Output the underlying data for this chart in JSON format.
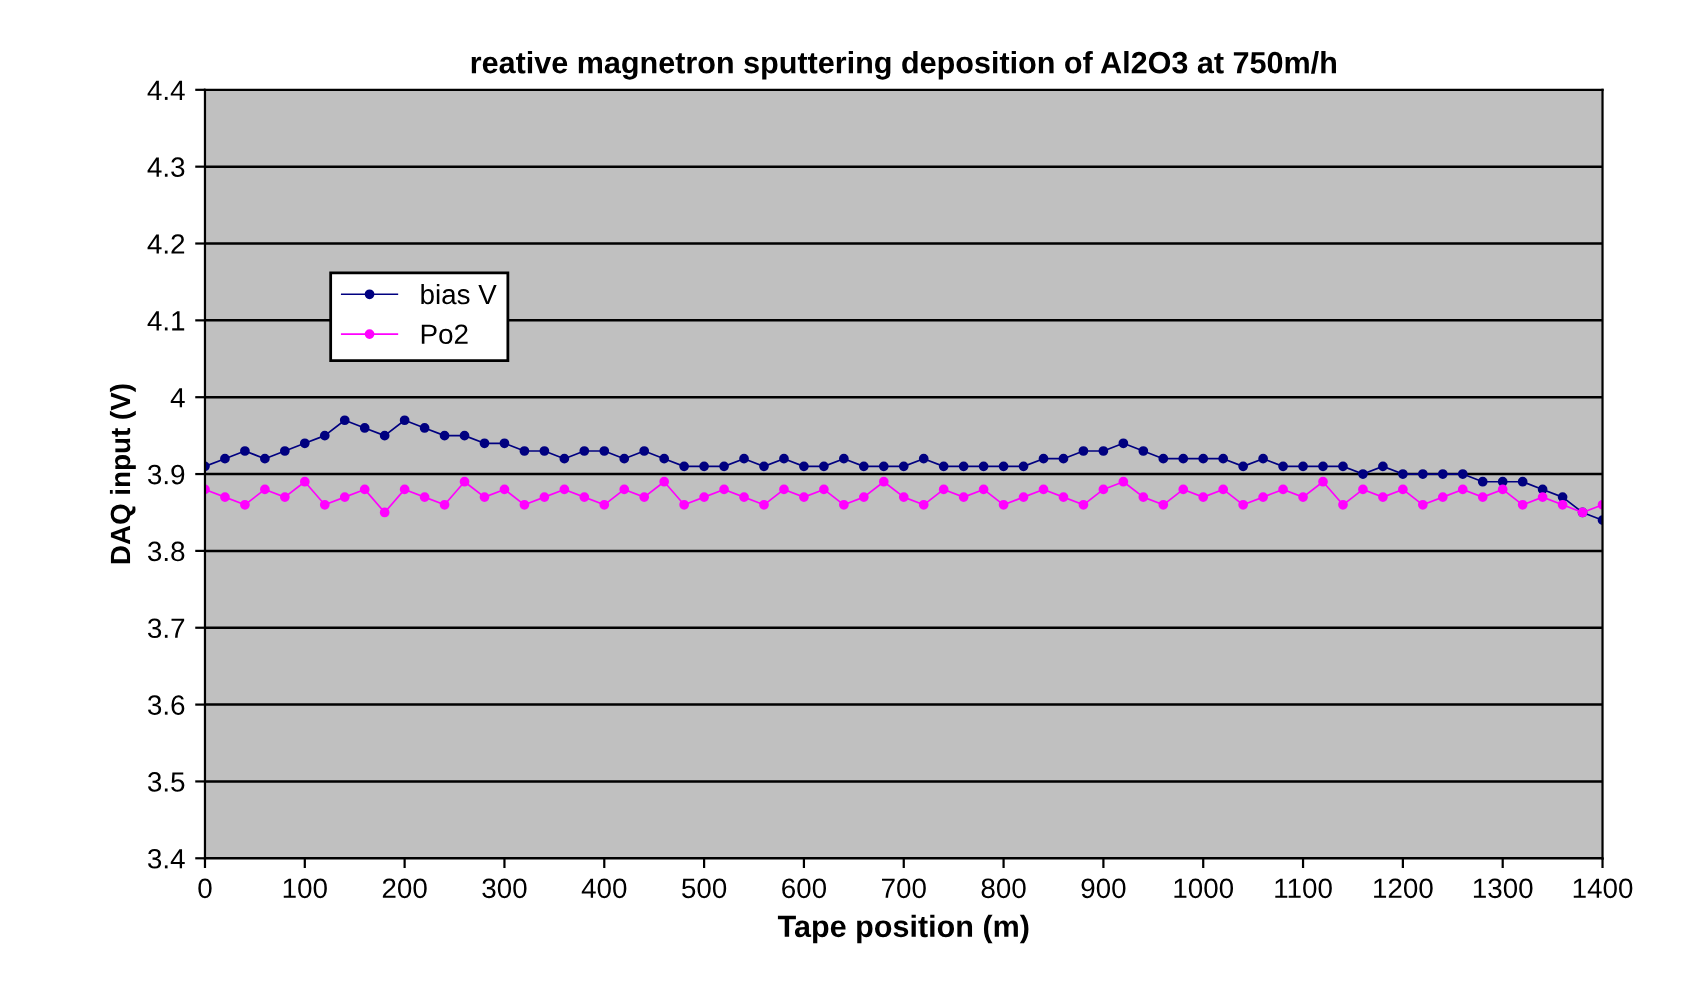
{
  "chart_data": {
    "type": "line",
    "title": "reative magnetron sputtering deposition of Al2O3 at 750m/h",
    "xlabel": "Tape position (m)",
    "ylabel": "DAQ input (V)",
    "x": [
      0,
      20,
      40,
      60,
      80,
      100,
      120,
      140,
      160,
      180,
      200,
      220,
      240,
      260,
      280,
      300,
      320,
      340,
      360,
      380,
      400,
      420,
      440,
      460,
      480,
      500,
      520,
      540,
      560,
      580,
      600,
      620,
      640,
      660,
      680,
      700,
      720,
      740,
      760,
      780,
      800,
      820,
      840,
      860,
      880,
      900,
      920,
      940,
      960,
      980,
      1000,
      1020,
      1040,
      1060,
      1080,
      1100,
      1120,
      1140,
      1160,
      1180,
      1200,
      1220,
      1240,
      1260,
      1280,
      1300,
      1320,
      1340,
      1360,
      1380,
      1400
    ],
    "series": [
      {
        "name": "bias V",
        "color": "#000080",
        "values": [
          3.91,
          3.92,
          3.93,
          3.92,
          3.93,
          3.94,
          3.95,
          3.97,
          3.96,
          3.95,
          3.97,
          3.96,
          3.95,
          3.95,
          3.94,
          3.94,
          3.93,
          3.93,
          3.92,
          3.93,
          3.93,
          3.92,
          3.93,
          3.92,
          3.91,
          3.91,
          3.91,
          3.92,
          3.91,
          3.92,
          3.91,
          3.91,
          3.92,
          3.91,
          3.91,
          3.91,
          3.92,
          3.91,
          3.91,
          3.91,
          3.91,
          3.91,
          3.92,
          3.92,
          3.93,
          3.93,
          3.94,
          3.93,
          3.92,
          3.92,
          3.92,
          3.92,
          3.91,
          3.92,
          3.91,
          3.91,
          3.91,
          3.91,
          3.9,
          3.91,
          3.9,
          3.9,
          3.9,
          3.9,
          3.89,
          3.89,
          3.89,
          3.88,
          3.87,
          3.85,
          3.84
        ]
      },
      {
        "name": "Po2",
        "color": "#ff00ff",
        "values": [
          3.88,
          3.87,
          3.86,
          3.88,
          3.87,
          3.89,
          3.86,
          3.87,
          3.88,
          3.85,
          3.88,
          3.87,
          3.86,
          3.89,
          3.87,
          3.88,
          3.86,
          3.87,
          3.88,
          3.87,
          3.86,
          3.88,
          3.87,
          3.89,
          3.86,
          3.87,
          3.88,
          3.87,
          3.86,
          3.88,
          3.87,
          3.88,
          3.86,
          3.87,
          3.89,
          3.87,
          3.86,
          3.88,
          3.87,
          3.88,
          3.86,
          3.87,
          3.88,
          3.87,
          3.86,
          3.88,
          3.89,
          3.87,
          3.86,
          3.88,
          3.87,
          3.88,
          3.86,
          3.87,
          3.88,
          3.87,
          3.89,
          3.86,
          3.88,
          3.87,
          3.88,
          3.86,
          3.87,
          3.88,
          3.87,
          3.88,
          3.86,
          3.87,
          3.86,
          3.85,
          3.86
        ]
      }
    ],
    "xlim": [
      0,
      1400
    ],
    "xticks": [
      0,
      100,
      200,
      300,
      400,
      500,
      600,
      700,
      800,
      900,
      1000,
      1100,
      1200,
      1300,
      1400
    ],
    "ylim": [
      3.4,
      4.4
    ],
    "yticks": [
      3.4,
      3.5,
      3.6,
      3.7,
      3.8,
      3.9,
      4,
      4.1,
      4.2,
      4.3,
      4.4
    ],
    "grid": "y",
    "legend": "top left",
    "marker": "circle",
    "line_style": "solid"
  }
}
